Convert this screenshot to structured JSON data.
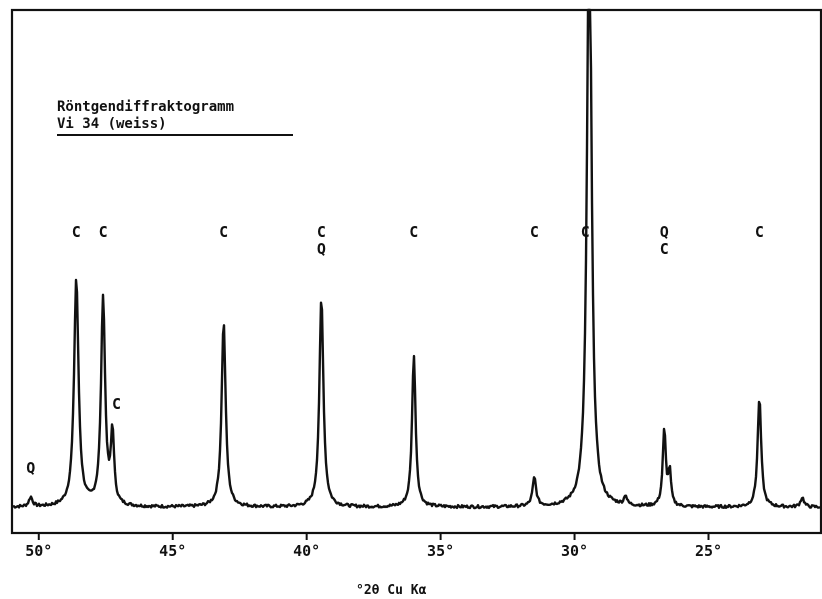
{
  "chart_data": {
    "type": "line",
    "title_lines": [
      "Röntgendiffraktogramm",
      "Vi 34 (weiss)"
    ],
    "xlabel": "°2θ Cu Kα",
    "ylabel": "",
    "x_reversed": true,
    "xlim": [
      51,
      20.8
    ],
    "ylim": [
      0,
      100
    ],
    "ticks": [
      {
        "value": 50,
        "label": "50°"
      },
      {
        "value": 45,
        "label": "45°"
      },
      {
        "value": 40,
        "label": "40°"
      },
      {
        "value": 35,
        "label": "35°"
      },
      {
        "value": 30,
        "label": "30°"
      },
      {
        "value": 25,
        "label": "25°"
      }
    ],
    "baseline": 1,
    "peaks": [
      {
        "x": 50.3,
        "y": 2,
        "w": 0.08
      },
      {
        "x": 48.6,
        "y": 48,
        "w": 0.1
      },
      {
        "x": 47.6,
        "y": 44,
        "w": 0.09
      },
      {
        "x": 47.25,
        "y": 15,
        "w": 0.07
      },
      {
        "x": 43.1,
        "y": 39,
        "w": 0.09
      },
      {
        "x": 39.45,
        "y": 44,
        "w": 0.09
      },
      {
        "x": 36.0,
        "y": 32,
        "w": 0.08
      },
      {
        "x": 31.5,
        "y": 6,
        "w": 0.08
      },
      {
        "x": 29.45,
        "y": 130,
        "w": 0.1
      },
      {
        "x": 28.1,
        "y": 2,
        "w": 0.06
      },
      {
        "x": 26.65,
        "y": 16,
        "w": 0.07
      },
      {
        "x": 26.45,
        "y": 7,
        "w": 0.06
      },
      {
        "x": 23.1,
        "y": 23,
        "w": 0.08
      },
      {
        "x": 21.5,
        "y": 2,
        "w": 0.08
      }
    ],
    "peak_labels": [
      {
        "x": 50.3,
        "lines": [
          "Q"
        ],
        "row": "low"
      },
      {
        "x": 48.6,
        "lines": [
          "C"
        ],
        "row": "top"
      },
      {
        "x": 47.6,
        "lines": [
          "C"
        ],
        "row": "top"
      },
      {
        "x": 47.1,
        "lines": [
          "C"
        ],
        "row": "mid"
      },
      {
        "x": 43.1,
        "lines": [
          "C"
        ],
        "row": "top"
      },
      {
        "x": 39.45,
        "lines": [
          "C",
          "Q"
        ],
        "row": "top"
      },
      {
        "x": 36.0,
        "lines": [
          "C"
        ],
        "row": "top"
      },
      {
        "x": 31.5,
        "lines": [
          "C"
        ],
        "row": "top"
      },
      {
        "x": 29.6,
        "lines": [
          "C"
        ],
        "row": "top"
      },
      {
        "x": 26.65,
        "lines": [
          "Q",
          "C"
        ],
        "row": "top"
      },
      {
        "x": 23.1,
        "lines": [
          "C"
        ],
        "row": "top"
      }
    ]
  }
}
